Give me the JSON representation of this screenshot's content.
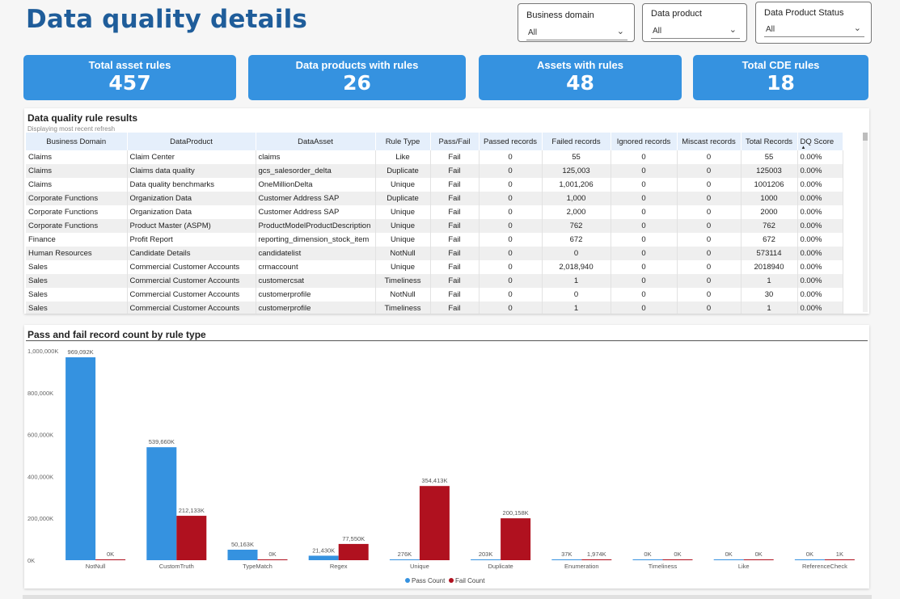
{
  "page_title": "Data quality details",
  "slicers": [
    {
      "label": "Business domain",
      "value": "All"
    },
    {
      "label": "Data product",
      "value": "All"
    },
    {
      "label": "Data Product Status",
      "value": "All"
    }
  ],
  "kpis": [
    {
      "label": "Total asset rules",
      "value": "457"
    },
    {
      "label": "Data products with rules",
      "value": "26"
    },
    {
      "label": "Assets with rules",
      "value": "48"
    },
    {
      "label": "Total CDE rules",
      "value": "18"
    }
  ],
  "table": {
    "title": "Data quality rule results",
    "subtitle": "Displaying most recent refresh",
    "columns": [
      "Business Domain",
      "DataProduct",
      "DataAsset",
      "Rule Type",
      "Pass/Fail",
      "Passed records",
      "Failed records",
      "Ignored records",
      "Miscast records",
      "Total Records",
      "DQ Score"
    ],
    "rows": [
      [
        "Claims",
        "Claim Center",
        "claims",
        "Like",
        "Fail",
        "0",
        "55",
        "0",
        "0",
        "55",
        "0.00%"
      ],
      [
        "Claims",
        "Claims data quality",
        "gcs_salesorder_delta",
        "Duplicate",
        "Fail",
        "0",
        "125,003",
        "0",
        "0",
        "125003",
        "0.00%"
      ],
      [
        "Claims",
        "Data quality benchmarks",
        "OneMillionDelta",
        "Unique",
        "Fail",
        "0",
        "1,001,206",
        "0",
        "0",
        "1001206",
        "0.00%"
      ],
      [
        "Corporate Functions",
        "Organization Data",
        "Customer Address SAP",
        "Duplicate",
        "Fail",
        "0",
        "1,000",
        "0",
        "0",
        "1000",
        "0.00%"
      ],
      [
        "Corporate Functions",
        "Organization Data",
        "Customer Address SAP",
        "Unique",
        "Fail",
        "0",
        "2,000",
        "0",
        "0",
        "2000",
        "0.00%"
      ],
      [
        "Corporate Functions",
        "Product Master (ASPM)",
        "ProductModelProductDescription",
        "Unique",
        "Fail",
        "0",
        "762",
        "0",
        "0",
        "762",
        "0.00%"
      ],
      [
        "Finance",
        "Profit Report",
        "reporting_dimension_stock_item",
        "Unique",
        "Fail",
        "0",
        "672",
        "0",
        "0",
        "672",
        "0.00%"
      ],
      [
        "Human Resources",
        "Candidate Details",
        "candidatelist",
        "NotNull",
        "Fail",
        "0",
        "0",
        "0",
        "0",
        "573114",
        "0.00%"
      ],
      [
        "Sales",
        "Commercial Customer Accounts",
        "crmaccount",
        "Unique",
        "Fail",
        "0",
        "2,018,940",
        "0",
        "0",
        "2018940",
        "0.00%"
      ],
      [
        "Sales",
        "Commercial Customer Accounts",
        "customercsat",
        "Timeliness",
        "Fail",
        "0",
        "1",
        "0",
        "0",
        "1",
        "0.00%"
      ],
      [
        "Sales",
        "Commercial Customer Accounts",
        "customerprofile",
        "NotNull",
        "Fail",
        "0",
        "0",
        "0",
        "0",
        "30",
        "0.00%"
      ],
      [
        "Sales",
        "Commercial Customer Accounts",
        "customerprofile",
        "Timeliness",
        "Fail",
        "0",
        "1",
        "0",
        "0",
        "1",
        "0.00%"
      ]
    ]
  },
  "chart_data": {
    "type": "bar",
    "title": "Pass and fail record count by rule type",
    "categories": [
      "NotNull",
      "CustomTruth",
      "TypeMatch",
      "Regex",
      "Unique",
      "Duplicate",
      "Enumeration",
      "Timeliness",
      "Like",
      "ReferenceCheck"
    ],
    "series": [
      {
        "name": "Pass Count",
        "color": "#3592e0",
        "values": [
          969092,
          539660,
          50163,
          21430,
          276,
          203,
          37,
          0,
          0,
          0
        ],
        "labels": [
          "969,092K",
          "539,660K",
          "50,163K",
          "21,430K",
          "276K",
          "203K",
          "37K",
          "0K",
          "0K",
          "0K"
        ]
      },
      {
        "name": "Fail Count",
        "color": "#b0111f",
        "values": [
          0,
          212133,
          0,
          77550,
          354413,
          200158,
          1974,
          0,
          0,
          1
        ],
        "labels": [
          "0K",
          "212,133K",
          "0K",
          "77,550K",
          "354,413K",
          "200,158K",
          "1,974K",
          "0K",
          "0K",
          "1K"
        ]
      }
    ],
    "yticks": [
      "0K",
      "200,000K",
      "400,000K",
      "600,000K",
      "800,000K",
      "1,000,000K"
    ],
    "ylim": [
      0,
      1000000
    ],
    "legend_position": "bottom-center",
    "grid": false
  }
}
